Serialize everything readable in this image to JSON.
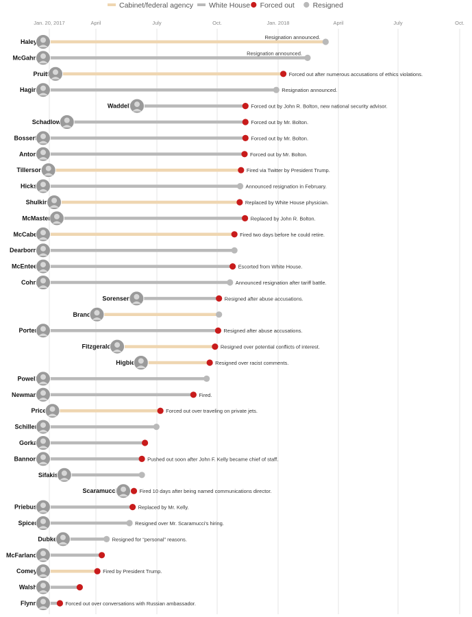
{
  "chart_data": {
    "type": "timeline",
    "start_date": "Jan. 20, 2017",
    "axis_ticks": [
      "Jan. 20, 2017",
      "April",
      "July",
      "Oct.",
      "Jan. 2018",
      "April",
      "July",
      "Oct."
    ],
    "legend": [
      {
        "label": "Cabinet/federal agency",
        "kind": "line",
        "color": "#efd6b1"
      },
      {
        "label": "White House",
        "kind": "line",
        "color": "#b9b9b9"
      },
      {
        "label": "Forced out",
        "kind": "dot",
        "color": "#c81b1b"
      },
      {
        "label": "Resigned",
        "kind": "dot",
        "color": "#b9b9b9"
      }
    ],
    "colors": {
      "cabinet": "#efd6b1",
      "white_house": "#b9b9b9",
      "forced": "#c81b1b",
      "resigned": "#b9b9b9",
      "grid": "#e6e6e6"
    },
    "people": [
      {
        "name": "Haley",
        "start": "2017-01-20",
        "end": "2018-10-09",
        "group": "cabinet",
        "outcome": "resigned",
        "note": "Resignation announced."
      },
      {
        "name": "McGahn",
        "start": "2017-01-20",
        "end": "2018-08-29",
        "group": "white_house",
        "outcome": "resigned",
        "note": "Resignation announced."
      },
      {
        "name": "Pruitt",
        "start": "2017-02-17",
        "end": "2018-07-05",
        "group": "cabinet",
        "outcome": "forced",
        "note": "Forced out after numerous accusations of ethics violations."
      },
      {
        "name": "Hagin",
        "start": "2017-01-20",
        "end": "2018-06-19",
        "group": "white_house",
        "outcome": "resigned",
        "note": "Resignation announced."
      },
      {
        "name": "Waddell",
        "start": "2017-08-21",
        "end": "2018-04-10",
        "group": "white_house",
        "outcome": "forced",
        "note": "Forced out by John R. Bolton, new national security advisor."
      },
      {
        "name": "Schadlow",
        "start": "2017-03-15",
        "end": "2018-04-10",
        "group": "white_house",
        "outcome": "forced",
        "note": "Forced out by Mr. Bolton."
      },
      {
        "name": "Bossert",
        "start": "2017-01-20",
        "end": "2018-04-10",
        "group": "white_house",
        "outcome": "forced",
        "note": "Forced out by Mr. Bolton."
      },
      {
        "name": "Anton",
        "start": "2017-01-20",
        "end": "2018-04-08",
        "group": "white_house",
        "outcome": "forced",
        "note": "Forced out by Mr. Bolton."
      },
      {
        "name": "Tillerson",
        "start": "2017-02-01",
        "end": "2018-03-31",
        "group": "cabinet",
        "outcome": "forced",
        "note": "Fired via Twitter by President Trump."
      },
      {
        "name": "Hicks",
        "start": "2017-01-20",
        "end": "2018-03-29",
        "group": "white_house",
        "outcome": "resigned",
        "note": "Announced resignation in February."
      },
      {
        "name": "Shulkin",
        "start": "2017-02-14",
        "end": "2018-03-28",
        "group": "cabinet",
        "outcome": "forced",
        "note": "Replaced by White House physician."
      },
      {
        "name": "McMaster",
        "start": "2017-02-20",
        "end": "2018-04-09",
        "group": "white_house",
        "outcome": "forced",
        "note": "Replaced by John R. Bolton."
      },
      {
        "name": "McCabe",
        "start": "2017-01-20",
        "end": "2018-03-16",
        "group": "cabinet",
        "outcome": "forced",
        "note": "Fired two days before he could retire."
      },
      {
        "name": "Dearborn",
        "start": "2017-01-20",
        "end": "2018-03-16",
        "group": "white_house",
        "outcome": "resigned",
        "note": ""
      },
      {
        "name": "McEntee",
        "start": "2017-01-20",
        "end": "2018-03-12",
        "group": "white_house",
        "outcome": "forced",
        "note": "Escorted from White House."
      },
      {
        "name": "Cohn",
        "start": "2017-01-20",
        "end": "2018-03-06",
        "group": "white_house",
        "outcome": "resigned",
        "note": "Announced resignation after tariff battle."
      },
      {
        "name": "Sorensen",
        "start": "2017-08-20",
        "end": "2018-02-09",
        "group": "white_house",
        "outcome": "forced",
        "note": "Resigned after abuse accusations."
      },
      {
        "name": "Brand",
        "start": "2017-05-22",
        "end": "2018-02-09",
        "group": "cabinet",
        "outcome": "resigned",
        "note": ""
      },
      {
        "name": "Porter",
        "start": "2017-01-20",
        "end": "2018-02-07",
        "group": "white_house",
        "outcome": "forced",
        "note": "Resigned after abuse accusations."
      },
      {
        "name": "Fitzgerald",
        "start": "2017-07-07",
        "end": "2018-01-31",
        "group": "cabinet",
        "outcome": "forced",
        "note": "Resigned over potential conflicts of interest."
      },
      {
        "name": "Higbie",
        "start": "2017-08-30",
        "end": "2018-01-19",
        "group": "cabinet",
        "outcome": "forced",
        "note": "Resigned over racist comments."
      },
      {
        "name": "Powell",
        "start": "2017-01-20",
        "end": "2018-01-12",
        "group": "white_house",
        "outcome": "resigned",
        "note": ""
      },
      {
        "name": "Newman",
        "start": "2017-01-20",
        "end": "2017-12-13",
        "group": "white_house",
        "outcome": "forced",
        "note": "Fired."
      },
      {
        "name": "Price",
        "start": "2017-02-10",
        "end": "2017-09-29",
        "group": "cabinet",
        "outcome": "forced",
        "note": "Forced out over traveling on private jets."
      },
      {
        "name": "Schiller",
        "start": "2017-01-20",
        "end": "2017-09-20",
        "group": "white_house",
        "outcome": "resigned",
        "note": ""
      },
      {
        "name": "Gorka",
        "start": "2017-01-20",
        "end": "2017-08-25",
        "group": "white_house",
        "outcome": "forced",
        "note": ""
      },
      {
        "name": "Bannon",
        "start": "2017-01-20",
        "end": "2017-08-18",
        "group": "white_house",
        "outcome": "forced",
        "note": "Pushed out soon after John F. Kelly became chief of staff."
      },
      {
        "name": "Sifakis",
        "start": "2017-03-09",
        "end": "2017-08-18",
        "group": "white_house",
        "outcome": "resigned",
        "note": ""
      },
      {
        "name": "Scaramucci",
        "start": "2017-07-21",
        "end": "2017-07-31",
        "group": "white_house",
        "outcome": "forced",
        "note": "Fired 10 days after being named communications director."
      },
      {
        "name": "Priebus",
        "start": "2017-01-20",
        "end": "2017-07-28",
        "group": "white_house",
        "outcome": "forced",
        "note": "Replaced by Mr. Kelly."
      },
      {
        "name": "Spicer",
        "start": "2017-01-20",
        "end": "2017-07-21",
        "group": "white_house",
        "outcome": "resigned",
        "note": "Resigned over Mr. Scaramucci's hiring."
      },
      {
        "name": "Dubke",
        "start": "2017-03-06",
        "end": "2017-05-30",
        "group": "white_house",
        "outcome": "resigned",
        "note": "Resigned for “personal” reasons."
      },
      {
        "name": "McFarland",
        "start": "2017-01-20",
        "end": "2017-05-19",
        "group": "white_house",
        "outcome": "forced",
        "note": ""
      },
      {
        "name": "Comey",
        "start": "2017-01-20",
        "end": "2017-05-09",
        "group": "cabinet",
        "outcome": "forced",
        "note": "Fired by President Trump."
      },
      {
        "name": "Walsh",
        "start": "2017-01-20",
        "end": "2017-03-30",
        "group": "white_house",
        "outcome": "forced",
        "note": ""
      },
      {
        "name": "Flynn",
        "start": "2017-01-20",
        "end": "2017-02-13",
        "group": "white_house",
        "outcome": "forced",
        "note": "Forced out over conversations with Russian ambassador."
      }
    ]
  }
}
